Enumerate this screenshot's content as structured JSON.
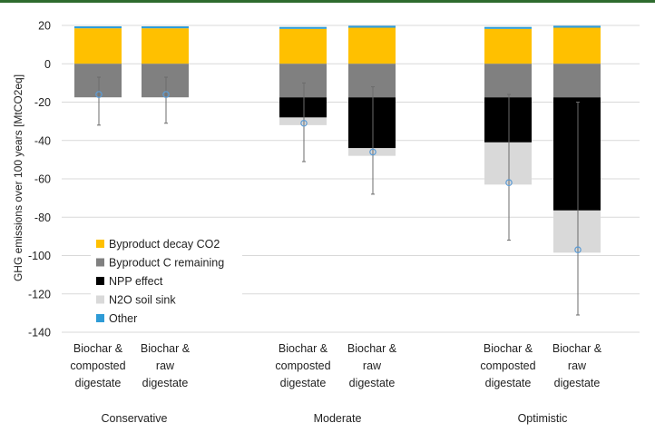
{
  "chart_data": {
    "type": "bar",
    "stacked": true,
    "ylabel": "GHG emissions over 100 years [MtCO2eq]",
    "ylim": [
      -140,
      20
    ],
    "yticks": [
      20,
      0,
      -20,
      -40,
      -60,
      -80,
      -100,
      -120,
      -140
    ],
    "grid": true,
    "legend_position": "lower-left inside",
    "bars": [
      {
        "label": [
          "Biochar &",
          "composted",
          "digestate"
        ],
        "group": 0
      },
      {
        "label": [
          "Biochar &",
          "raw",
          "digestate"
        ],
        "group": 0
      },
      {
        "label": [
          "Biochar &",
          "composted",
          "digestate"
        ],
        "group": 1
      },
      {
        "label": [
          "Biochar &",
          "raw",
          "digestate"
        ],
        "group": 1
      },
      {
        "label": [
          "Biochar &",
          "composted",
          "digestate"
        ],
        "group": 2
      },
      {
        "label": [
          "Biochar &",
          "raw",
          "digestate"
        ],
        "group": 2
      }
    ],
    "groups": [
      "Conservative",
      "Moderate",
      "Optimistic"
    ],
    "series": [
      {
        "name": "Byproduct decay CO2",
        "color": "#FFC000",
        "values": [
          18.5,
          18.5,
          18.2,
          18.8,
          18.2,
          18.8
        ]
      },
      {
        "name": "Other",
        "color": "#2E9BD6",
        "values": [
          1.0,
          1.0,
          1.0,
          1.0,
          1.0,
          1.0
        ]
      },
      {
        "name": "Byproduct C remaining",
        "color": "#808080",
        "values": [
          -17.5,
          -17.5,
          -17.5,
          -17.5,
          -17.5,
          -17.5
        ]
      },
      {
        "name": "NPP effect",
        "color": "#000000",
        "values": [
          0,
          0,
          -10.5,
          -26.5,
          -23.5,
          -59
        ]
      },
      {
        "name": "N2O soil sink",
        "color": "#D9D9D9",
        "values": [
          0,
          0,
          -4,
          -4,
          -22,
          -22
        ]
      }
    ],
    "legend_order": [
      "Byproduct decay CO2",
      "Byproduct C remaining",
      "NPP effect",
      "N2O soil sink",
      "Other"
    ],
    "net_marker": {
      "center": [
        -16,
        -16,
        -31,
        -46,
        -62,
        -97
      ],
      "low": [
        -32,
        -31,
        -51,
        -68,
        -92,
        -131
      ],
      "high": [
        -7,
        -7,
        -10,
        -12,
        -16,
        -20
      ]
    }
  }
}
